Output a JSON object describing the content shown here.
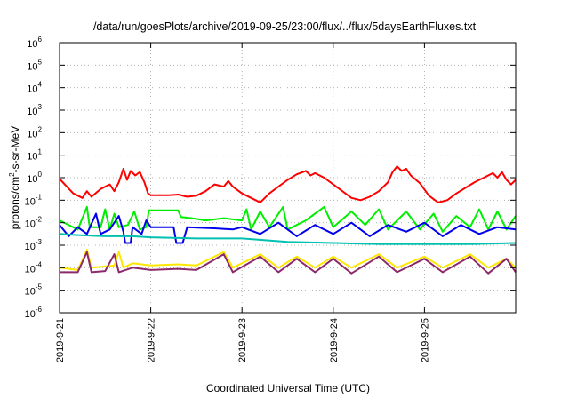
{
  "chart_data": {
    "type": "line",
    "title": "/data/run/goesPlots/archive/2019-09-25/23:00/flux/../flux/5daysEarthFluxes.txt",
    "xlabel": "Coordinated Universal Time (UTC)",
    "ylabel": "protons/cm²-s-sr-MeV",
    "ylabel_parts": {
      "pre": "protons/cm",
      "sup": "2",
      "post": "-s-sr-MeV"
    },
    "yscale": "log",
    "ylim": [
      1e-06,
      1000000.0
    ],
    "xlim": [
      0,
      5
    ],
    "x_origin_label": "2019-9-21",
    "xticks": [
      {
        "value": 0,
        "label": "2019-9-21"
      },
      {
        "value": 1,
        "label": "2019-9-22"
      },
      {
        "value": 2,
        "label": "2019-9-23"
      },
      {
        "value": 3,
        "label": "2019-9-24"
      },
      {
        "value": 4,
        "label": "2019-9-25"
      }
    ],
    "yticks": [
      {
        "exp": -6,
        "base": "10",
        "sup": "-6"
      },
      {
        "exp": -5,
        "base": "10",
        "sup": "-5"
      },
      {
        "exp": -4,
        "base": "10",
        "sup": "-4"
      },
      {
        "exp": -3,
        "base": "10",
        "sup": "-3"
      },
      {
        "exp": -2,
        "base": "10",
        "sup": "-2"
      },
      {
        "exp": -1,
        "base": "10",
        "sup": "-1"
      },
      {
        "exp": 0,
        "base": "10",
        "sup": "0"
      },
      {
        "exp": 1,
        "base": "10",
        "sup": "1"
      },
      {
        "exp": 2,
        "base": "10",
        "sup": "2"
      },
      {
        "exp": 3,
        "base": "10",
        "sup": "3"
      },
      {
        "exp": 4,
        "base": "10",
        "sup": "4"
      },
      {
        "exp": 5,
        "base": "10",
        "sup": "5"
      },
      {
        "exp": 6,
        "base": "10",
        "sup": "6"
      }
    ],
    "grid": true,
    "legend": "none",
    "series": [
      {
        "color": "#ff0000",
        "points": [
          [
            0,
            -0.05
          ],
          [
            0.08,
            -0.4
          ],
          [
            0.15,
            -0.7
          ],
          [
            0.25,
            -0.9
          ],
          [
            0.3,
            -0.6
          ],
          [
            0.35,
            -0.85
          ],
          [
            0.45,
            -0.5
          ],
          [
            0.55,
            -0.3
          ],
          [
            0.6,
            -0.6
          ],
          [
            0.65,
            -0.2
          ],
          [
            0.7,
            0.4
          ],
          [
            0.74,
            -0.1
          ],
          [
            0.78,
            0.3
          ],
          [
            0.83,
            0.1
          ],
          [
            0.88,
            0.25
          ],
          [
            0.93,
            -0.2
          ],
          [
            0.97,
            -0.7
          ],
          [
            1.0,
            -0.78
          ],
          [
            1.2,
            -0.78
          ],
          [
            1.3,
            -0.75
          ],
          [
            1.4,
            -0.85
          ],
          [
            1.5,
            -0.8
          ],
          [
            1.6,
            -0.6
          ],
          [
            1.7,
            -0.3
          ],
          [
            1.8,
            -0.4
          ],
          [
            1.85,
            -0.15
          ],
          [
            1.9,
            -0.4
          ],
          [
            1.95,
            -0.55
          ],
          [
            2.0,
            -0.7
          ],
          [
            2.1,
            -0.9
          ],
          [
            2.2,
            -1.1
          ],
          [
            2.3,
            -0.7
          ],
          [
            2.4,
            -0.4
          ],
          [
            2.5,
            -0.1
          ],
          [
            2.6,
            0.15
          ],
          [
            2.7,
            0.3
          ],
          [
            2.75,
            0.1
          ],
          [
            2.8,
            0.2
          ],
          [
            2.9,
            0.0
          ],
          [
            3.0,
            -0.3
          ],
          [
            3.1,
            -0.6
          ],
          [
            3.2,
            -0.9
          ],
          [
            3.3,
            -1.0
          ],
          [
            3.4,
            -0.85
          ],
          [
            3.5,
            -0.6
          ],
          [
            3.6,
            -0.2
          ],
          [
            3.65,
            0.25
          ],
          [
            3.7,
            0.5
          ],
          [
            3.75,
            0.3
          ],
          [
            3.8,
            0.4
          ],
          [
            3.85,
            0.1
          ],
          [
            3.95,
            -0.25
          ],
          [
            4.05,
            -0.8
          ],
          [
            4.15,
            -1.1
          ],
          [
            4.25,
            -1.0
          ],
          [
            4.35,
            -0.7
          ],
          [
            4.45,
            -0.45
          ],
          [
            4.55,
            -0.2
          ],
          [
            4.65,
            0.0
          ],
          [
            4.75,
            0.2
          ],
          [
            4.8,
            0.0
          ],
          [
            4.85,
            0.25
          ],
          [
            4.9,
            -0.1
          ],
          [
            4.95,
            -0.3
          ],
          [
            5.0,
            -0.1
          ]
        ]
      },
      {
        "color": "#00ee00",
        "points": [
          [
            0,
            -1.9
          ],
          [
            0.2,
            -2.3
          ],
          [
            0.3,
            -1.3
          ],
          [
            0.33,
            -2.2
          ],
          [
            0.45,
            -2.2
          ],
          [
            0.5,
            -1.4
          ],
          [
            0.55,
            -2.3
          ],
          [
            0.6,
            -1.6
          ],
          [
            0.65,
            -2.2
          ],
          [
            0.75,
            -2.1
          ],
          [
            0.82,
            -1.5
          ],
          [
            0.88,
            -2.3
          ],
          [
            0.95,
            -2.2
          ],
          [
            0.98,
            -1.45
          ],
          [
            1.3,
            -1.45
          ],
          [
            1.33,
            -1.75
          ],
          [
            1.45,
            -1.8
          ],
          [
            1.6,
            -1.9
          ],
          [
            1.8,
            -1.8
          ],
          [
            2.0,
            -1.9
          ],
          [
            2.05,
            -1.4
          ],
          [
            2.1,
            -2.3
          ],
          [
            2.2,
            -1.5
          ],
          [
            2.3,
            -2.2
          ],
          [
            2.45,
            -1.3
          ],
          [
            2.5,
            -2.3
          ],
          [
            2.7,
            -1.9
          ],
          [
            2.9,
            -1.3
          ],
          [
            3.0,
            -2.2
          ],
          [
            3.2,
            -1.5
          ],
          [
            3.35,
            -2.1
          ],
          [
            3.5,
            -1.4
          ],
          [
            3.6,
            -2.3
          ],
          [
            3.8,
            -1.5
          ],
          [
            3.95,
            -2.3
          ],
          [
            4.1,
            -1.6
          ],
          [
            4.2,
            -2.4
          ],
          [
            4.35,
            -1.7
          ],
          [
            4.5,
            -2.2
          ],
          [
            4.6,
            -1.4
          ],
          [
            4.7,
            -2.3
          ],
          [
            4.8,
            -1.5
          ],
          [
            4.9,
            -2.3
          ],
          [
            5.0,
            -1.7
          ]
        ]
      },
      {
        "color": "#0000ee",
        "points": [
          [
            0,
            -2.1
          ],
          [
            0.1,
            -2.6
          ],
          [
            0.2,
            -2.2
          ],
          [
            0.3,
            -2.5
          ],
          [
            0.4,
            -1.6
          ],
          [
            0.45,
            -2.5
          ],
          [
            0.55,
            -2.3
          ],
          [
            0.65,
            -1.7
          ],
          [
            0.7,
            -2.4
          ],
          [
            0.72,
            -2.9
          ],
          [
            0.78,
            -2.9
          ],
          [
            0.8,
            -2.2
          ],
          [
            0.9,
            -2.5
          ],
          [
            0.95,
            -1.9
          ],
          [
            1.0,
            -2.2
          ],
          [
            1.25,
            -2.2
          ],
          [
            1.28,
            -2.9
          ],
          [
            1.35,
            -2.9
          ],
          [
            1.4,
            -2.2
          ],
          [
            1.7,
            -2.25
          ],
          [
            1.9,
            -2.3
          ],
          [
            2.0,
            -2.2
          ],
          [
            2.2,
            -2.5
          ],
          [
            2.4,
            -2.0
          ],
          [
            2.6,
            -2.6
          ],
          [
            2.8,
            -2.1
          ],
          [
            3.0,
            -2.5
          ],
          [
            3.2,
            -2.0
          ],
          [
            3.4,
            -2.6
          ],
          [
            3.6,
            -2.1
          ],
          [
            3.8,
            -2.4
          ],
          [
            4.0,
            -2.0
          ],
          [
            4.2,
            -2.6
          ],
          [
            4.4,
            -2.1
          ],
          [
            4.6,
            -2.5
          ],
          [
            4.8,
            -2.2
          ],
          [
            5.0,
            -2.3
          ]
        ]
      },
      {
        "color": "#00c0b0",
        "points": [
          [
            0,
            -2.5
          ],
          [
            0.2,
            -2.55
          ],
          [
            0.5,
            -2.6
          ],
          [
            0.8,
            -2.6
          ],
          [
            1.0,
            -2.65
          ],
          [
            1.5,
            -2.7
          ],
          [
            2.0,
            -2.7
          ],
          [
            2.5,
            -2.85
          ],
          [
            3.0,
            -2.9
          ],
          [
            3.5,
            -2.95
          ],
          [
            4.0,
            -2.95
          ],
          [
            4.5,
            -2.95
          ],
          [
            5.0,
            -2.9
          ]
        ]
      },
      {
        "color": "#ffe800",
        "points": [
          [
            0,
            -4.0
          ],
          [
            0.2,
            -4.1
          ],
          [
            0.3,
            -3.2
          ],
          [
            0.35,
            -4.0
          ],
          [
            0.6,
            -3.9
          ],
          [
            0.65,
            -3.3
          ],
          [
            0.7,
            -4.0
          ],
          [
            0.8,
            -3.8
          ],
          [
            1.0,
            -3.9
          ],
          [
            1.3,
            -3.85
          ],
          [
            1.5,
            -3.9
          ],
          [
            1.8,
            -3.3
          ],
          [
            1.9,
            -4.0
          ],
          [
            2.2,
            -3.4
          ],
          [
            2.4,
            -4.0
          ],
          [
            2.6,
            -3.5
          ],
          [
            2.8,
            -4.0
          ],
          [
            3.0,
            -3.5
          ],
          [
            3.2,
            -4.0
          ],
          [
            3.5,
            -3.4
          ],
          [
            3.7,
            -4.0
          ],
          [
            4.0,
            -3.5
          ],
          [
            4.2,
            -4.0
          ],
          [
            4.5,
            -3.4
          ],
          [
            4.7,
            -4.0
          ],
          [
            4.9,
            -3.6
          ],
          [
            5.0,
            -4.0
          ]
        ]
      },
      {
        "color": "#8b2a6b",
        "points": [
          [
            0,
            -4.2
          ],
          [
            0.2,
            -4.2
          ],
          [
            0.3,
            -3.3
          ],
          [
            0.35,
            -4.2
          ],
          [
            0.5,
            -4.15
          ],
          [
            0.6,
            -3.4
          ],
          [
            0.65,
            -4.2
          ],
          [
            0.8,
            -4.0
          ],
          [
            1.0,
            -4.1
          ],
          [
            1.3,
            -4.05
          ],
          [
            1.5,
            -4.1
          ],
          [
            1.8,
            -3.4
          ],
          [
            1.9,
            -4.2
          ],
          [
            2.2,
            -3.5
          ],
          [
            2.4,
            -4.2
          ],
          [
            2.6,
            -3.6
          ],
          [
            2.8,
            -4.2
          ],
          [
            3.0,
            -3.6
          ],
          [
            3.2,
            -4.25
          ],
          [
            3.5,
            -3.5
          ],
          [
            3.7,
            -4.2
          ],
          [
            4.0,
            -3.6
          ],
          [
            4.2,
            -4.2
          ],
          [
            4.5,
            -3.5
          ],
          [
            4.7,
            -4.25
          ],
          [
            4.9,
            -3.6
          ],
          [
            5.0,
            -4.2
          ]
        ]
      }
    ]
  }
}
